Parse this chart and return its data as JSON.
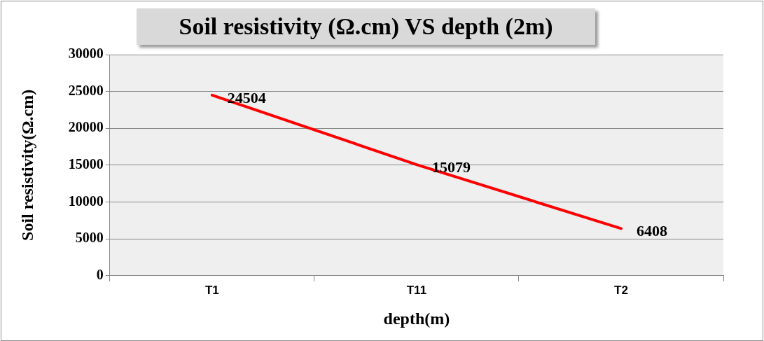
{
  "chart_data": {
    "type": "line",
    "title": "Soil resistivity (Ω.cm) VS depth  (2m)",
    "xlabel": "depth(m)",
    "ylabel": "Soil resistivity(Ω.cm)",
    "categories": [
      "T1",
      "T11",
      "T2"
    ],
    "series": [
      {
        "color": "#ff0000",
        "values": [
          24504,
          15079,
          6408
        ]
      }
    ],
    "ylim": [
      0,
      30000
    ],
    "yticks": [
      0,
      5000,
      10000,
      15000,
      20000,
      25000,
      30000
    ],
    "grid": "y",
    "legend": false,
    "marker": "none",
    "data_labels": true
  }
}
